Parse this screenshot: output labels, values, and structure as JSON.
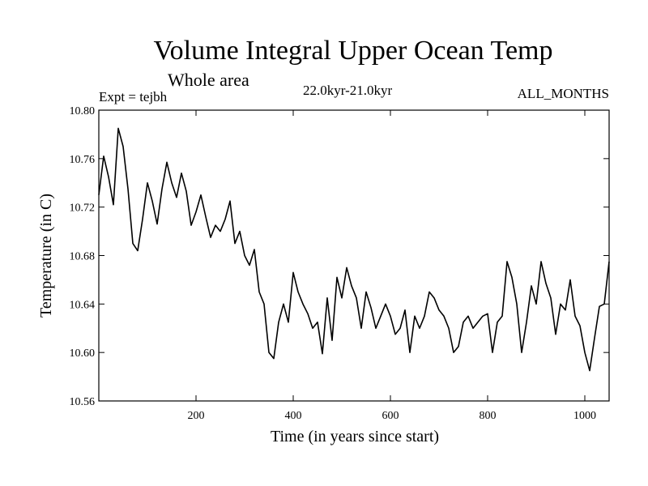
{
  "chart_data": {
    "type": "line",
    "title": "Volume Integral Upper Ocean Temp",
    "subtitle": "Whole area",
    "experiment_label": "Expt = tejbh",
    "period_label": "22.0kyr-21.0kyr",
    "months_label": "ALL_MONTHS",
    "xlabel": "Time (in years since start)",
    "ylabel": "Temperature (in C)",
    "xlim": [
      0,
      1050
    ],
    "ylim": [
      10.56,
      10.8
    ],
    "xticks": [
      200,
      400,
      600,
      800,
      1000
    ],
    "yticks": [
      10.56,
      10.6,
      10.64,
      10.68,
      10.72,
      10.76,
      10.8
    ],
    "ytick_labels": [
      "10.56",
      "10.60",
      "10.64",
      "10.68",
      "10.72",
      "10.76",
      "10.80"
    ],
    "series": [
      {
        "name": "Volume integral upper ocean temperature",
        "x": [
          0,
          10,
          20,
          30,
          40,
          50,
          60,
          70,
          80,
          90,
          100,
          110,
          120,
          130,
          140,
          150,
          160,
          170,
          180,
          190,
          200,
          210,
          220,
          230,
          240,
          250,
          260,
          270,
          280,
          290,
          300,
          310,
          320,
          330,
          340,
          350,
          360,
          370,
          380,
          390,
          400,
          410,
          420,
          430,
          440,
          450,
          460,
          470,
          480,
          490,
          500,
          510,
          520,
          530,
          540,
          550,
          560,
          570,
          580,
          590,
          600,
          610,
          620,
          630,
          640,
          650,
          660,
          670,
          680,
          690,
          700,
          710,
          720,
          730,
          740,
          750,
          760,
          770,
          780,
          790,
          800,
          810,
          820,
          830,
          840,
          850,
          860,
          870,
          880,
          890,
          900,
          910,
          920,
          930,
          940,
          950,
          960,
          970,
          980,
          990,
          1000,
          1010,
          1020,
          1030,
          1040,
          1050
        ],
        "values": [
          10.73,
          10.762,
          10.745,
          10.722,
          10.785,
          10.77,
          10.735,
          10.69,
          10.684,
          10.71,
          10.74,
          10.725,
          10.706,
          10.735,
          10.757,
          10.74,
          10.728,
          10.748,
          10.733,
          10.705,
          10.716,
          10.73,
          10.712,
          10.695,
          10.705,
          10.7,
          10.71,
          10.725,
          10.69,
          10.7,
          10.68,
          10.672,
          10.685,
          10.65,
          10.64,
          10.6,
          10.595,
          10.625,
          10.64,
          10.625,
          10.666,
          10.65,
          10.64,
          10.632,
          10.62,
          10.625,
          10.599,
          10.645,
          10.61,
          10.662,
          10.645,
          10.67,
          10.655,
          10.645,
          10.62,
          10.65,
          10.637,
          10.62,
          10.63,
          10.64,
          10.63,
          10.615,
          10.62,
          10.635,
          10.6,
          10.63,
          10.62,
          10.63,
          10.65,
          10.645,
          10.635,
          10.63,
          10.62,
          10.6,
          10.605,
          10.625,
          10.63,
          10.62,
          10.625,
          10.63,
          10.632,
          10.6,
          10.625,
          10.63,
          10.675,
          10.662,
          10.64,
          10.6,
          10.625,
          10.655,
          10.64,
          10.675,
          10.657,
          10.645,
          10.615,
          10.64,
          10.635,
          10.66,
          10.63,
          10.622,
          10.6,
          10.585,
          10.612,
          10.638,
          10.64,
          10.675
        ]
      }
    ]
  }
}
